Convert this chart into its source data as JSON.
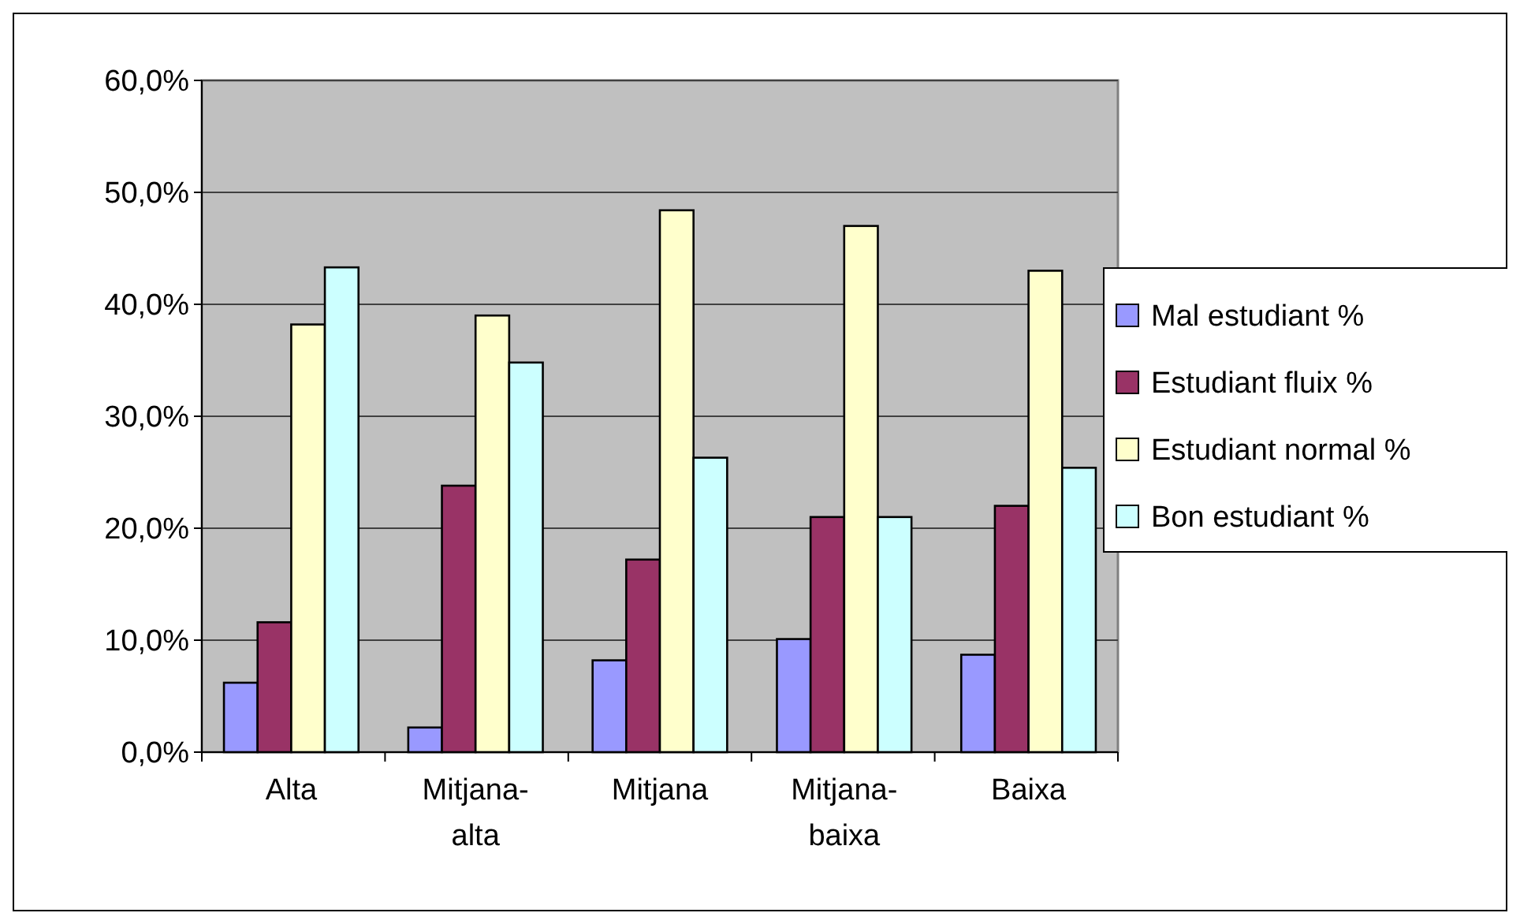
{
  "chart_data": {
    "type": "bar",
    "categories": [
      "Alta",
      "Mitjana-alta",
      "Mitjana",
      "Mitjana-baixa",
      "Baixa"
    ],
    "series": [
      {
        "name": "Mal estudiant %",
        "color": "#9999ff",
        "values": [
          6.2,
          2.2,
          8.2,
          10.1,
          8.7
        ]
      },
      {
        "name": "Estudiant fluix %",
        "color": "#993366",
        "values": [
          11.6,
          23.8,
          17.2,
          21.0,
          22.0
        ]
      },
      {
        "name": "Estudiant normal %",
        "color": "#ffffcc",
        "values": [
          38.2,
          39.0,
          48.4,
          47.0,
          43.0
        ]
      },
      {
        "name": "Bon estudiant %",
        "color": "#ccffff",
        "values": [
          43.3,
          34.8,
          26.3,
          21.0,
          25.4
        ]
      }
    ],
    "ylim": [
      0,
      60
    ],
    "yticks": [
      {
        "value": 0,
        "label": "0,0%"
      },
      {
        "value": 10,
        "label": "10,0%"
      },
      {
        "value": 20,
        "label": "20,0%"
      },
      {
        "value": 30,
        "label": "30,0%"
      },
      {
        "value": 40,
        "label": "40,0%"
      },
      {
        "value": 50,
        "label": "50,0%"
      },
      {
        "value": 60,
        "label": "60,0%"
      }
    ],
    "grid": "y",
    "legend": "right"
  }
}
